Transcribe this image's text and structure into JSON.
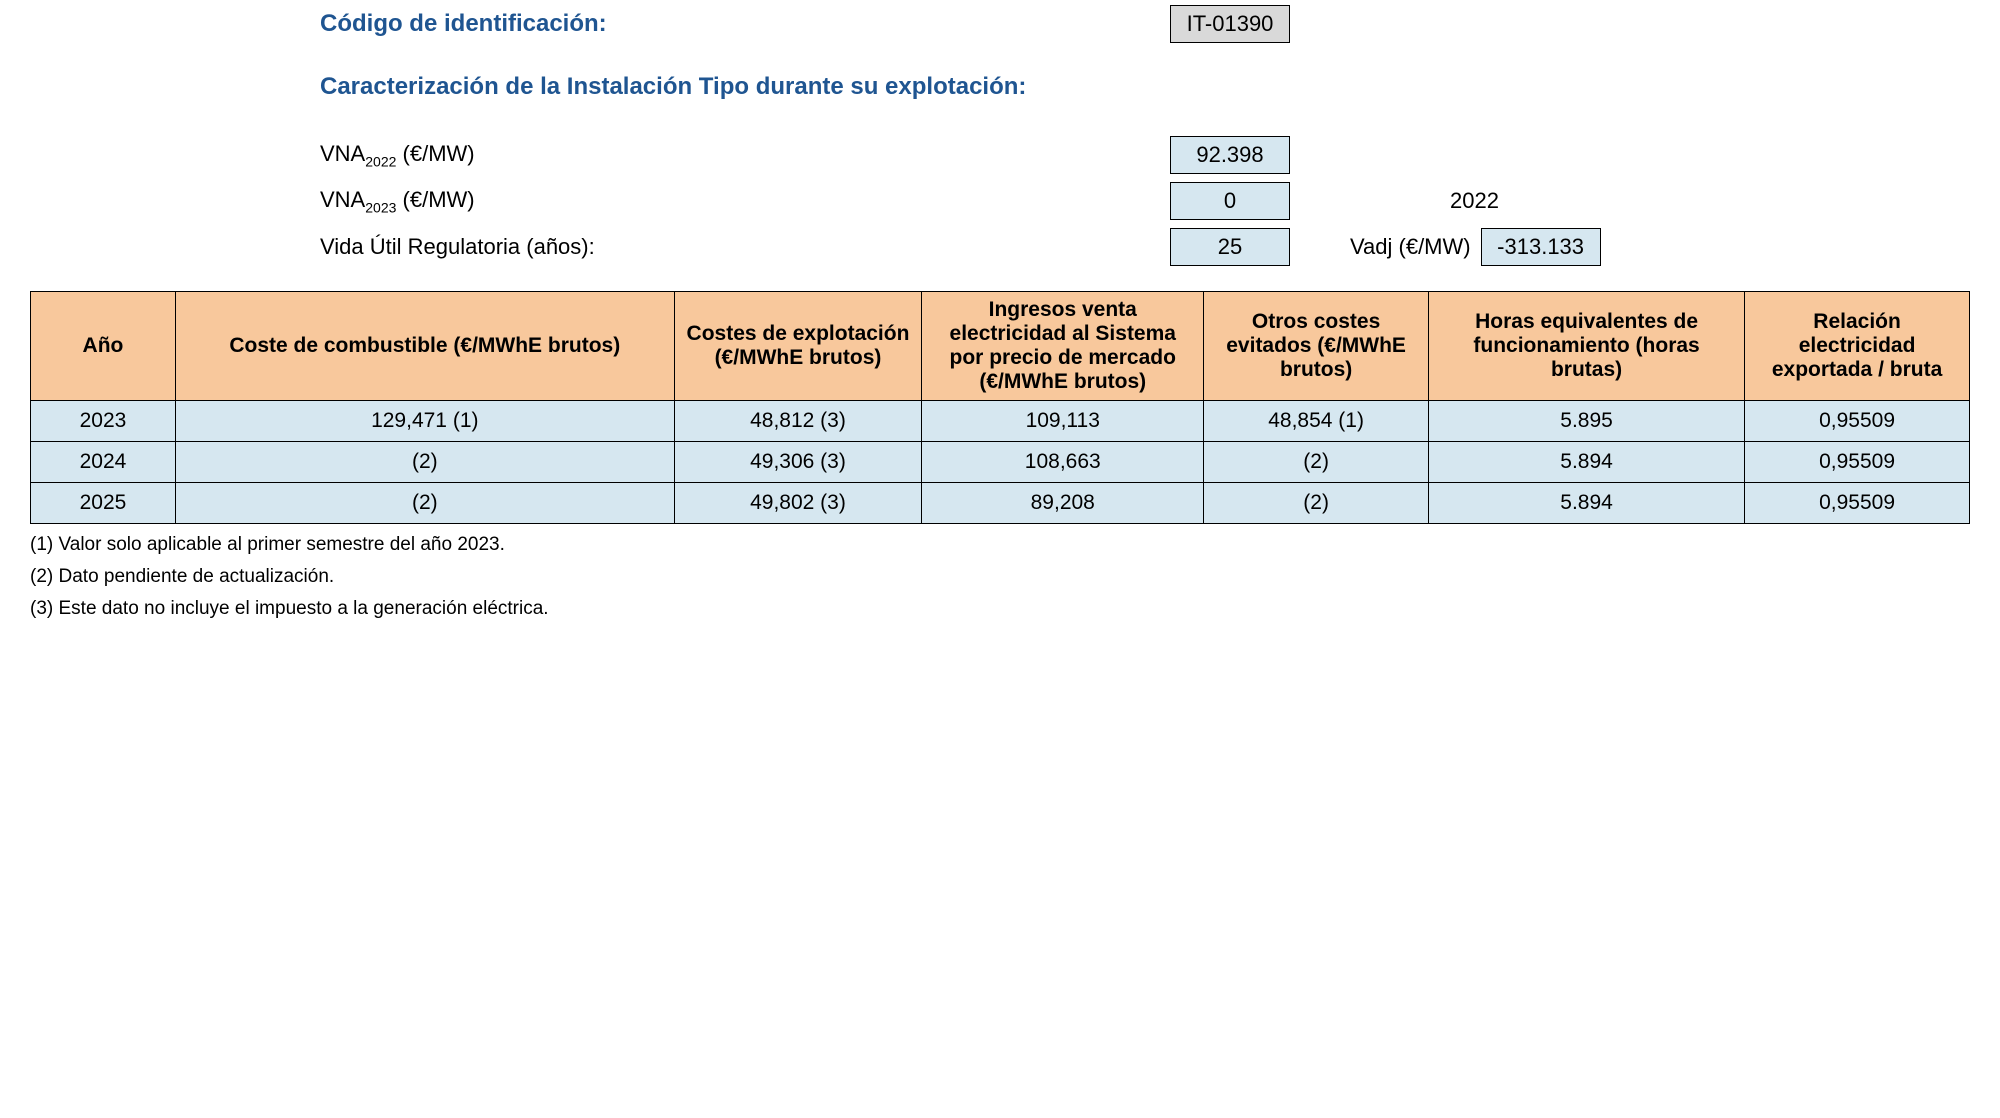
{
  "header": {
    "codigo_label": "Código de identificación:",
    "codigo_value": "IT-01390",
    "caract_label": "Caracterización de la Instalación Tipo durante su explotación:",
    "vna2022_label_pre": "VNA",
    "vna2022_sub": "2022",
    "vna2022_label_post": " (€/MW)",
    "vna2022_value": "92.398",
    "vna2023_label_pre": "VNA",
    "vna2023_sub": "2023",
    "vna2023_label_post": " (€/MW)",
    "vna2023_value": "0",
    "vida_label": "Vida Útil Regulatoria (años):",
    "vida_value": "25",
    "year_right": "2022",
    "vadj_label": "Vadj (€/MW)",
    "vadj_value": "-313.133"
  },
  "table": {
    "columns": [
      "Año",
      "Coste de combustible (€/MWhE brutos)",
      "Costes de explotación (€/MWhE brutos)",
      "Ingresos venta electricidad al Sistema por precio de mercado (€/MWhE brutos)",
      "Otros costes evitados (€/MWhE brutos)",
      "Horas equivalentes de funcionamiento (horas brutas)",
      "Relación electricidad exportada / bruta"
    ],
    "rows": [
      [
        "2023",
        "129,471 (1)",
        "48,812 (3)",
        "109,113",
        "48,854 (1)",
        "5.895",
        "0,95509"
      ],
      [
        "2024",
        "(2)",
        "49,306 (3)",
        "108,663",
        "(2)",
        "5.894",
        "0,95509"
      ],
      [
        "2025",
        "(2)",
        "49,802 (3)",
        "89,208",
        "(2)",
        "5.894",
        "0,95509"
      ]
    ],
    "header_bg": "#f8c89c",
    "row_bg": "#d6e7f0"
  },
  "footnotes": [
    "(1) Valor solo aplicable al primer semestre del año 2023.",
    "(2) Dato pendiente de actualización.",
    "(3) Este dato no incluye el impuesto a la generación eléctrica."
  ]
}
